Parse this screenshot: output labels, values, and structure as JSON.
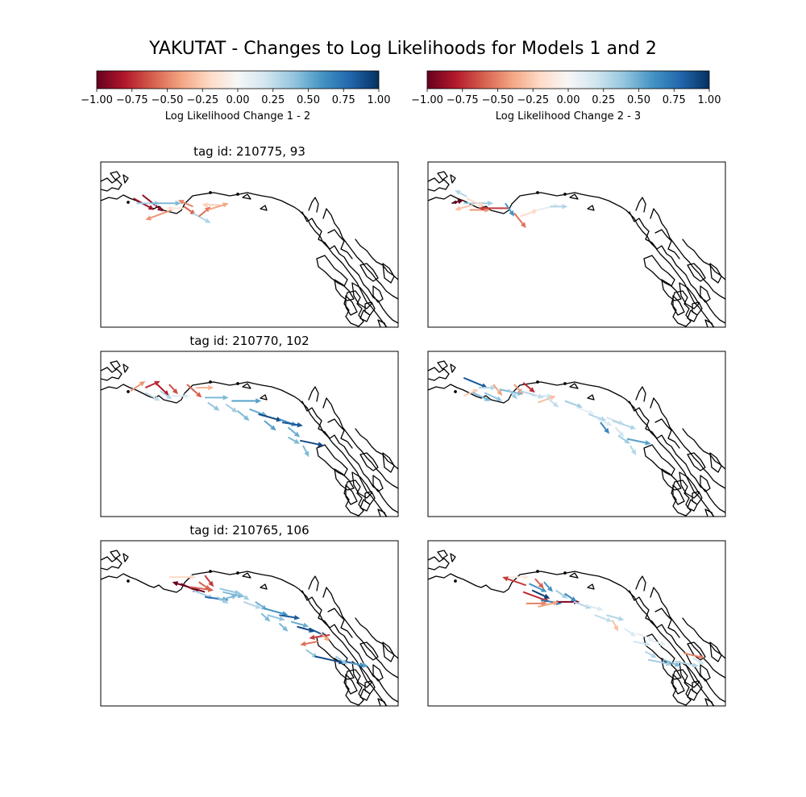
{
  "figure": {
    "title": "YAKUTAT - Changes to Log Likelihoods for Models 1 and 2"
  },
  "colorbars": [
    {
      "label": "Log Likelihood Change 1 - 2",
      "range": [
        -1.0,
        1.0
      ],
      "ticks": [
        "−1.00",
        "−0.75",
        "−0.50",
        "−0.25",
        "0.00",
        "0.25",
        "0.50",
        "0.75",
        "1.00"
      ]
    },
    {
      "label": "Log Likelihood Change 2 - 3",
      "range": [
        -1.0,
        1.0
      ],
      "ticks": [
        "−1.00",
        "−0.75",
        "−0.50",
        "−0.25",
        "0.00",
        "0.25",
        "0.50",
        "0.75",
        "1.00"
      ]
    }
  ],
  "colormap": {
    "name": "RdBu",
    "stops": [
      "#67001f",
      "#b2182b",
      "#d6604d",
      "#f4a582",
      "#fddbc7",
      "#f7f7f7",
      "#d1e5f0",
      "#92c5de",
      "#4393c3",
      "#2166ac",
      "#053061"
    ]
  },
  "chart_data": [
    {
      "type": "quiver",
      "panel": "row1-left",
      "title": "tag id: 210775, 93",
      "value_range": [
        -1,
        1
      ],
      "arrows": [
        {
          "x": 0.11,
          "y": 0.22,
          "u": 0.07,
          "v": 0.07,
          "value": -0.85
        },
        {
          "x": 0.14,
          "y": 0.2,
          "u": 0.07,
          "v": 0.1,
          "value": -0.9
        },
        {
          "x": 0.12,
          "y": 0.25,
          "u": 0.08,
          "v": 0.0,
          "value": 0.35
        },
        {
          "x": 0.17,
          "y": 0.25,
          "u": 0.1,
          "v": 0.0,
          "value": 0.45
        },
        {
          "x": 0.24,
          "y": 0.29,
          "u": -0.09,
          "v": 0.06,
          "value": -0.45
        },
        {
          "x": 0.28,
          "y": 0.28,
          "u": -0.06,
          "v": 0.0,
          "value": -0.15
        },
        {
          "x": 0.28,
          "y": 0.27,
          "u": 0.04,
          "v": 0.05,
          "value": -0.6
        },
        {
          "x": 0.31,
          "y": 0.31,
          "u": 0.06,
          "v": 0.06,
          "value": 0.3
        },
        {
          "x": 0.31,
          "y": 0.27,
          "u": -0.05,
          "v": -0.04,
          "value": -0.5
        },
        {
          "x": 0.33,
          "y": 0.33,
          "u": 0.04,
          "v": -0.06,
          "value": -0.55
        },
        {
          "x": 0.4,
          "y": 0.26,
          "u": -0.06,
          "v": 0.0,
          "value": -0.25
        },
        {
          "x": 0.36,
          "y": 0.29,
          "u": 0.07,
          "v": -0.04,
          "value": -0.4
        }
      ]
    },
    {
      "type": "quiver",
      "panel": "row1-right",
      "title": "",
      "value_range": [
        -1,
        1
      ],
      "arrows": [
        {
          "x": 0.08,
          "y": 0.25,
          "u": 0.04,
          "v": -0.02,
          "value": -1.0
        },
        {
          "x": 0.12,
          "y": 0.25,
          "u": 0.1,
          "v": 0.0,
          "value": 0.35
        },
        {
          "x": 0.13,
          "y": 0.21,
          "u": -0.04,
          "v": -0.04,
          "value": 0.3
        },
        {
          "x": 0.13,
          "y": 0.22,
          "u": 0.06,
          "v": 0.05,
          "value": -0.2
        },
        {
          "x": 0.15,
          "y": 0.26,
          "u": -0.06,
          "v": 0.03,
          "value": -0.3
        },
        {
          "x": 0.14,
          "y": 0.29,
          "u": 0.07,
          "v": 0.0,
          "value": -0.45
        },
        {
          "x": 0.27,
          "y": 0.28,
          "u": -0.1,
          "v": 0.0,
          "value": -0.7
        },
        {
          "x": 0.26,
          "y": 0.25,
          "u": 0.03,
          "v": 0.08,
          "value": 0.6
        },
        {
          "x": 0.29,
          "y": 0.31,
          "u": 0.04,
          "v": 0.09,
          "value": -0.55
        },
        {
          "x": 0.31,
          "y": 0.33,
          "u": 0.06,
          "v": -0.04,
          "value": -0.2
        },
        {
          "x": 0.37,
          "y": 0.29,
          "u": 0.07,
          "v": -0.03,
          "value": 0.1
        },
        {
          "x": 0.41,
          "y": 0.27,
          "u": 0.06,
          "v": 0.0,
          "value": 0.3
        }
      ]
    },
    {
      "type": "quiver",
      "panel": "row2-left",
      "title": "tag id: 210770, 102",
      "value_range": [
        -1,
        1
      ],
      "arrows": [
        {
          "x": 0.1,
          "y": 0.24,
          "u": 0.05,
          "v": -0.06,
          "value": -0.45
        },
        {
          "x": 0.15,
          "y": 0.22,
          "u": 0.05,
          "v": -0.04,
          "value": -0.75
        },
        {
          "x": 0.15,
          "y": 0.25,
          "u": 0.05,
          "v": 0.05,
          "value": 0.25
        },
        {
          "x": 0.19,
          "y": 0.2,
          "u": 0.04,
          "v": 0.07,
          "value": -0.8
        },
        {
          "x": 0.2,
          "y": 0.24,
          "u": 0.04,
          "v": 0.05,
          "value": 0.3
        },
        {
          "x": 0.23,
          "y": 0.2,
          "u": 0.03,
          "v": 0.06,
          "value": -0.65
        },
        {
          "x": 0.24,
          "y": 0.27,
          "u": 0.06,
          "v": 0.0,
          "value": 0.15
        },
        {
          "x": 0.29,
          "y": 0.2,
          "u": 0.05,
          "v": 0.08,
          "value": -0.6
        },
        {
          "x": 0.32,
          "y": 0.22,
          "u": 0.06,
          "v": 0.0,
          "value": -0.35
        },
        {
          "x": 0.35,
          "y": 0.28,
          "u": 0.08,
          "v": 0.0,
          "value": 0.45
        },
        {
          "x": 0.44,
          "y": 0.3,
          "u": 0.1,
          "v": 0.0,
          "value": 0.55
        },
        {
          "x": 0.36,
          "y": 0.31,
          "u": 0.04,
          "v": 0.05,
          "value": 0.4
        },
        {
          "x": 0.42,
          "y": 0.32,
          "u": 0.04,
          "v": 0.05,
          "value": 0.35
        },
        {
          "x": 0.46,
          "y": 0.36,
          "u": 0.04,
          "v": 0.06,
          "value": 0.45
        },
        {
          "x": 0.5,
          "y": 0.35,
          "u": 0.06,
          "v": 0.04,
          "value": 0.5
        },
        {
          "x": 0.53,
          "y": 0.38,
          "u": 0.08,
          "v": 0.04,
          "value": 0.9
        },
        {
          "x": 0.55,
          "y": 0.42,
          "u": 0.04,
          "v": 0.06,
          "value": 0.55
        },
        {
          "x": 0.6,
          "y": 0.41,
          "u": 0.06,
          "v": 0.04,
          "value": 0.6
        },
        {
          "x": 0.61,
          "y": 0.43,
          "u": 0.07,
          "v": 0.02,
          "value": 0.85
        },
        {
          "x": 0.63,
          "y": 0.46,
          "u": 0.04,
          "v": 0.06,
          "value": 0.5
        },
        {
          "x": 0.63,
          "y": 0.52,
          "u": 0.04,
          "v": 0.04,
          "value": 0.45
        },
        {
          "x": 0.67,
          "y": 0.54,
          "u": 0.08,
          "v": 0.03,
          "value": 0.9
        },
        {
          "x": 0.68,
          "y": 0.57,
          "u": 0.02,
          "v": 0.07,
          "value": 0.45
        }
      ]
    },
    {
      "type": "quiver",
      "panel": "row2-right",
      "title": "",
      "value_range": [
        -1,
        1
      ],
      "arrows": [
        {
          "x": 0.12,
          "y": 0.16,
          "u": 0.08,
          "v": 0.06,
          "value": 0.85
        },
        {
          "x": 0.12,
          "y": 0.27,
          "u": 0.05,
          "v": -0.04,
          "value": -0.25
        },
        {
          "x": 0.17,
          "y": 0.22,
          "u": 0.06,
          "v": 0.0,
          "value": 0.3
        },
        {
          "x": 0.15,
          "y": 0.25,
          "u": 0.06,
          "v": 0.05,
          "value": 0.45
        },
        {
          "x": 0.19,
          "y": 0.25,
          "u": 0.06,
          "v": 0.05,
          "value": 0.4
        },
        {
          "x": 0.22,
          "y": 0.2,
          "u": 0.03,
          "v": 0.07,
          "value": -0.4
        },
        {
          "x": 0.24,
          "y": 0.23,
          "u": 0.08,
          "v": 0.03,
          "value": 0.45
        },
        {
          "x": 0.27,
          "y": 0.23,
          "u": 0.03,
          "v": 0.06,
          "value": 0.35
        },
        {
          "x": 0.29,
          "y": 0.2,
          "u": 0.03,
          "v": 0.06,
          "value": -0.45
        },
        {
          "x": 0.32,
          "y": 0.19,
          "u": 0.04,
          "v": 0.06,
          "value": -0.75
        },
        {
          "x": 0.31,
          "y": 0.24,
          "u": 0.08,
          "v": 0.04,
          "value": 0.3
        },
        {
          "x": 0.35,
          "y": 0.27,
          "u": 0.07,
          "v": 0.0,
          "value": 0.2
        },
        {
          "x": 0.37,
          "y": 0.31,
          "u": 0.06,
          "v": -0.04,
          "value": -0.3
        },
        {
          "x": 0.4,
          "y": 0.28,
          "u": 0.04,
          "v": 0.06,
          "value": 0.25
        },
        {
          "x": 0.46,
          "y": 0.3,
          "u": 0.06,
          "v": 0.04,
          "value": 0.35
        },
        {
          "x": 0.5,
          "y": 0.34,
          "u": 0.06,
          "v": 0.04,
          "value": 0.1
        },
        {
          "x": 0.54,
          "y": 0.38,
          "u": 0.06,
          "v": 0.04,
          "value": 0.3
        },
        {
          "x": 0.57,
          "y": 0.41,
          "u": 0.05,
          "v": 0.04,
          "value": 0.15
        },
        {
          "x": 0.6,
          "y": 0.4,
          "u": 0.06,
          "v": 0.04,
          "value": 0.2
        },
        {
          "x": 0.62,
          "y": 0.42,
          "u": 0.08,
          "v": 0.05,
          "value": 0.3
        },
        {
          "x": 0.58,
          "y": 0.43,
          "u": 0.03,
          "v": 0.07,
          "value": 0.65
        },
        {
          "x": 0.63,
          "y": 0.46,
          "u": 0.03,
          "v": 0.06,
          "value": 0.2
        },
        {
          "x": 0.64,
          "y": 0.51,
          "u": 0.04,
          "v": 0.05,
          "value": 0.35
        },
        {
          "x": 0.67,
          "y": 0.53,
          "u": 0.08,
          "v": 0.03,
          "value": 0.55
        },
        {
          "x": 0.68,
          "y": 0.57,
          "u": 0.02,
          "v": 0.06,
          "value": 0.3
        }
      ]
    },
    {
      "type": "quiver",
      "panel": "row3-left",
      "title": "tag id: 210765, 106",
      "value_range": [
        -1,
        1
      ],
      "arrows": [
        {
          "x": 0.23,
          "y": 0.22,
          "u": 0.09,
          "v": 0.0,
          "value": -0.2
        },
        {
          "x": 0.27,
          "y": 0.26,
          "u": 0.06,
          "v": 0.05,
          "value": -0.9
        },
        {
          "x": 0.35,
          "y": 0.31,
          "u": -0.11,
          "v": -0.06,
          "value": -1.0
        },
        {
          "x": 0.3,
          "y": 0.28,
          "u": 0.08,
          "v": 0.02,
          "value": -0.6
        },
        {
          "x": 0.31,
          "y": 0.3,
          "u": 0.07,
          "v": 0.05,
          "value": 0.35
        },
        {
          "x": 0.33,
          "y": 0.25,
          "u": 0.04,
          "v": 0.05,
          "value": -0.6
        },
        {
          "x": 0.35,
          "y": 0.21,
          "u": 0.03,
          "v": 0.07,
          "value": -0.7
        },
        {
          "x": 0.35,
          "y": 0.34,
          "u": 0.08,
          "v": 0.02,
          "value": 0.75
        },
        {
          "x": 0.4,
          "y": 0.29,
          "u": 0.07,
          "v": 0.03,
          "value": 0.4
        },
        {
          "x": 0.39,
          "y": 0.34,
          "u": 0.04,
          "v": 0.04,
          "value": 0.35
        },
        {
          "x": 0.41,
          "y": 0.31,
          "u": 0.07,
          "v": 0.03,
          "value": 0.45
        },
        {
          "x": 0.4,
          "y": 0.36,
          "u": 0.06,
          "v": -0.03,
          "value": 0.45
        },
        {
          "x": 0.46,
          "y": 0.31,
          "u": 0.04,
          "v": 0.05,
          "value": 0.35
        },
        {
          "x": 0.48,
          "y": 0.37,
          "u": 0.06,
          "v": 0.04,
          "value": 0.3
        },
        {
          "x": 0.52,
          "y": 0.37,
          "u": 0.04,
          "v": 0.05,
          "value": 0.5
        },
        {
          "x": 0.55,
          "y": 0.41,
          "u": 0.08,
          "v": 0.04,
          "value": 0.6
        },
        {
          "x": 0.54,
          "y": 0.44,
          "u": 0.03,
          "v": 0.05,
          "value": 0.45
        },
        {
          "x": 0.56,
          "y": 0.45,
          "u": 0.06,
          "v": 0.03,
          "value": 0.4
        },
        {
          "x": 0.6,
          "y": 0.45,
          "u": 0.07,
          "v": 0.02,
          "value": 0.85
        },
        {
          "x": 0.6,
          "y": 0.5,
          "u": 0.03,
          "v": 0.05,
          "value": 0.45
        },
        {
          "x": 0.64,
          "y": 0.49,
          "u": 0.06,
          "v": 0.03,
          "value": 0.5
        },
        {
          "x": 0.7,
          "y": 0.53,
          "u": 0.06,
          "v": 0.05,
          "value": 0.85
        },
        {
          "x": 0.66,
          "y": 0.52,
          "u": 0.06,
          "v": 0.03,
          "value": 0.9
        },
        {
          "x": 0.77,
          "y": 0.57,
          "u": -0.07,
          "v": 0.02,
          "value": -0.7
        },
        {
          "x": 0.73,
          "y": 0.61,
          "u": -0.06,
          "v": 0.02,
          "value": -0.55
        },
        {
          "x": 0.74,
          "y": 0.56,
          "u": 0.03,
          "v": 0.05,
          "value": -0.4
        },
        {
          "x": 0.69,
          "y": 0.66,
          "u": 0.04,
          "v": 0.05,
          "value": 0.4
        },
        {
          "x": 0.72,
          "y": 0.7,
          "u": 0.1,
          "v": 0.04,
          "value": 0.9
        },
        {
          "x": 0.82,
          "y": 0.73,
          "u": 0.07,
          "v": 0.03,
          "value": 0.85
        },
        {
          "x": 0.79,
          "y": 0.7,
          "u": 0.04,
          "v": 0.05,
          "value": 0.4
        },
        {
          "x": 0.84,
          "y": 0.74,
          "u": 0.06,
          "v": 0.02,
          "value": 0.55
        }
      ]
    },
    {
      "type": "quiver",
      "panel": "row3-right",
      "title": "",
      "value_range": [
        -1,
        1
      ],
      "arrows": [
        {
          "x": 0.25,
          "y": 0.22,
          "u": 0.09,
          "v": 0.0,
          "value": -0.1
        },
        {
          "x": 0.33,
          "y": 0.27,
          "u": -0.08,
          "v": -0.05,
          "value": -0.7
        },
        {
          "x": 0.32,
          "y": 0.31,
          "u": 0.09,
          "v": 0.06,
          "value": -0.75
        },
        {
          "x": 0.34,
          "y": 0.26,
          "u": 0.06,
          "v": 0.05,
          "value": 0.6
        },
        {
          "x": 0.35,
          "y": 0.3,
          "u": 0.06,
          "v": 0.05,
          "value": 0.95
        },
        {
          "x": 0.36,
          "y": 0.23,
          "u": 0.03,
          "v": 0.06,
          "value": -0.6
        },
        {
          "x": 0.33,
          "y": 0.38,
          "u": 0.07,
          "v": 0.0,
          "value": -0.5
        },
        {
          "x": 0.38,
          "y": 0.36,
          "u": 0.07,
          "v": 0.02,
          "value": 0.7
        },
        {
          "x": 0.43,
          "y": 0.37,
          "u": 0.08,
          "v": 0.0,
          "value": -0.95
        },
        {
          "x": 0.39,
          "y": 0.25,
          "u": 0.03,
          "v": 0.06,
          "value": 0.6
        },
        {
          "x": 0.37,
          "y": 0.4,
          "u": 0.07,
          "v": -0.03,
          "value": -0.4
        },
        {
          "x": 0.43,
          "y": 0.3,
          "u": 0.04,
          "v": 0.05,
          "value": 0.35
        },
        {
          "x": 0.46,
          "y": 0.32,
          "u": 0.04,
          "v": 0.05,
          "value": 0.65
        },
        {
          "x": 0.49,
          "y": 0.37,
          "u": 0.06,
          "v": 0.04,
          "value": 0.3
        },
        {
          "x": 0.53,
          "y": 0.39,
          "u": 0.06,
          "v": 0.03,
          "value": 0.15
        },
        {
          "x": 0.56,
          "y": 0.45,
          "u": 0.06,
          "v": 0.04,
          "value": 0.25
        },
        {
          "x": 0.6,
          "y": 0.45,
          "u": 0.06,
          "v": 0.03,
          "value": 0.3
        },
        {
          "x": 0.62,
          "y": 0.48,
          "u": 0.02,
          "v": 0.07,
          "value": -0.3
        },
        {
          "x": 0.66,
          "y": 0.53,
          "u": 0.04,
          "v": 0.05,
          "value": 0.15
        },
        {
          "x": 0.7,
          "y": 0.56,
          "u": 0.06,
          "v": 0.04,
          "value": 0.1
        },
        {
          "x": 0.69,
          "y": 0.61,
          "u": 0.06,
          "v": 0.02,
          "value": 0.2
        },
        {
          "x": 0.74,
          "y": 0.6,
          "u": 0.06,
          "v": 0.03,
          "value": 0.1
        },
        {
          "x": 0.73,
          "y": 0.67,
          "u": 0.04,
          "v": 0.04,
          "value": 0.3
        },
        {
          "x": 0.74,
          "y": 0.72,
          "u": 0.08,
          "v": 0.03,
          "value": 0.35
        },
        {
          "x": 0.79,
          "y": 0.72,
          "u": 0.06,
          "v": 0.04,
          "value": 0.45
        },
        {
          "x": 0.83,
          "y": 0.73,
          "u": 0.08,
          "v": 0.03,
          "value": 0.3
        },
        {
          "x": 0.86,
          "y": 0.68,
          "u": 0.07,
          "v": 0.03,
          "value": -0.5
        },
        {
          "x": 0.89,
          "y": 0.71,
          "u": 0.04,
          "v": 0.04,
          "value": 0.2
        }
      ]
    }
  ]
}
